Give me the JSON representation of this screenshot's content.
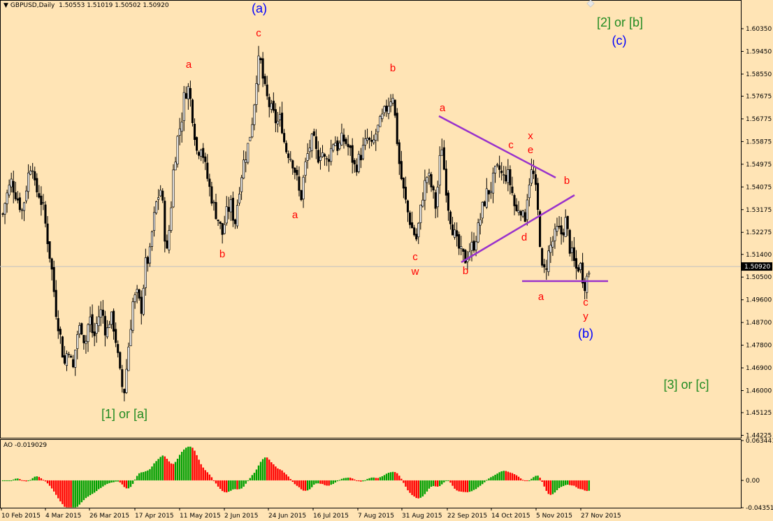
{
  "header": {
    "title": "GBPUSD,Daily",
    "ohlc": "1.50553 1.51019 1.50502 1.50920",
    "dropdown_icon": "triangle-down-icon"
  },
  "indicator": {
    "name": "AO",
    "value": "-0.019029"
  },
  "colors": {
    "background": "#ffe4b5",
    "candle_bull": "#ffffff",
    "candle_bear": "#000000",
    "wave_red": "#ff0000",
    "wave_blue": "#0000ff",
    "wave_green": "#228b22",
    "trendline": "#9932cc",
    "ao_up": "#00a000",
    "ao_down": "#ff0000"
  },
  "chart_data": [
    {
      "type": "candlestick",
      "symbol": "GBPUSD",
      "timeframe": "Daily",
      "current_price": "1.50920",
      "price_axis_ticks": [
        "1.60350",
        "1.59450",
        "1.58550",
        "1.57675",
        "1.56775",
        "1.55875",
        "1.54975",
        "1.54075",
        "1.53175",
        "1.52275",
        "1.51400",
        "1.50500",
        "1.49600",
        "1.48700",
        "1.47800",
        "1.46900",
        "1.46000",
        "1.45125",
        "1.44225"
      ],
      "ylim": [
        1.441,
        1.611
      ],
      "date_axis_ticks": [
        "10 Feb 2015",
        "4 Mar 2015",
        "26 Mar 2015",
        "17 Apr 2015",
        "11 May 2015",
        "2 Jun 2015",
        "24 Jun 2015",
        "16 Jul 2015",
        "7 Aug 2015",
        "31 Aug 2015",
        "22 Sep 2015",
        "14 Oct 2015",
        "5 Nov 2015",
        "27 Nov 2015"
      ],
      "close_path": [
        [
          0,
          1.524
        ],
        [
          8,
          1.536
        ],
        [
          16,
          1.543
        ],
        [
          24,
          1.537
        ],
        [
          32,
          1.531
        ],
        [
          40,
          1.545
        ],
        [
          46,
          1.552
        ],
        [
          50,
          1.54
        ],
        [
          56,
          1.538
        ],
        [
          62,
          1.532
        ],
        [
          68,
          1.52
        ],
        [
          74,
          1.508
        ],
        [
          80,
          1.492
        ],
        [
          86,
          1.482
        ],
        [
          92,
          1.47
        ],
        [
          98,
          1.478
        ],
        [
          104,
          1.467
        ],
        [
          110,
          1.482
        ],
        [
          116,
          1.486
        ],
        [
          122,
          1.478
        ],
        [
          128,
          1.49
        ],
        [
          134,
          1.48
        ],
        [
          140,
          1.489
        ],
        [
          146,
          1.492
        ],
        [
          152,
          1.482
        ],
        [
          158,
          1.49
        ],
        [
          164,
          1.484
        ],
        [
          170,
          1.47
        ],
        [
          174,
          1.462
        ],
        [
          178,
          1.46
        ],
        [
          184,
          1.478
        ],
        [
          190,
          1.495
        ],
        [
          196,
          1.498
        ],
        [
          202,
          1.492
        ],
        [
          208,
          1.51
        ],
        [
          214,
          1.513
        ],
        [
          218,
          1.524
        ],
        [
          224,
          1.535
        ],
        [
          230,
          1.54
        ],
        [
          234,
          1.53
        ],
        [
          238,
          1.512
        ],
        [
          244,
          1.53
        ],
        [
          248,
          1.547
        ],
        [
          254,
          1.56
        ],
        [
          260,
          1.568
        ],
        [
          264,
          1.578
        ],
        [
          270,
          1.58
        ],
        [
          276,
          1.568
        ],
        [
          282,
          1.554
        ],
        [
          288,
          1.558
        ],
        [
          294,
          1.548
        ],
        [
          300,
          1.54
        ],
        [
          306,
          1.533
        ],
        [
          312,
          1.528
        ],
        [
          318,
          1.522
        ],
        [
          324,
          1.53
        ],
        [
          330,
          1.534
        ],
        [
          336,
          1.526
        ],
        [
          342,
          1.54
        ],
        [
          348,
          1.55
        ],
        [
          354,
          1.556
        ],
        [
          360,
          1.565
        ],
        [
          364,
          1.575
        ],
        [
          368,
          1.588
        ],
        [
          372,
          1.592
        ],
        [
          378,
          1.58
        ],
        [
          384,
          1.574
        ],
        [
          390,
          1.57
        ],
        [
          396,
          1.566
        ],
        [
          402,
          1.568
        ],
        [
          408,
          1.556
        ],
        [
          414,
          1.554
        ],
        [
          420,
          1.55
        ],
        [
          426,
          1.542
        ],
        [
          430,
          1.535
        ],
        [
          436,
          1.548
        ],
        [
          442,
          1.556
        ],
        [
          448,
          1.56
        ],
        [
          454,
          1.552
        ],
        [
          460,
          1.556
        ],
        [
          466,
          1.55
        ],
        [
          472,
          1.554
        ],
        [
          478,
          1.56
        ],
        [
          484,
          1.556
        ],
        [
          490,
          1.56
        ],
        [
          496,
          1.558
        ],
        [
          502,
          1.554
        ],
        [
          508,
          1.548
        ],
        [
          514,
          1.552
        ],
        [
          520,
          1.556
        ],
        [
          526,
          1.56
        ],
        [
          532,
          1.556
        ],
        [
          538,
          1.562
        ],
        [
          544,
          1.566
        ],
        [
          550,
          1.57
        ],
        [
          556,
          1.574
        ],
        [
          562,
          1.578
        ],
        [
          568,
          1.56
        ],
        [
          572,
          1.548
        ],
        [
          578,
          1.538
        ],
        [
          584,
          1.53
        ],
        [
          590,
          1.524
        ],
        [
          596,
          1.52
        ],
        [
          600,
          1.528
        ],
        [
          606,
          1.54
        ],
        [
          612,
          1.546
        ],
        [
          618,
          1.54
        ],
        [
          624,
          1.532
        ],
        [
          628,
          1.548
        ],
        [
          632,
          1.558
        ],
        [
          636,
          1.546
        ],
        [
          642,
          1.532
        ],
        [
          648,
          1.524
        ],
        [
          654,
          1.518
        ],
        [
          660,
          1.514
        ],
        [
          666,
          1.512
        ],
        [
          672,
          1.516
        ],
        [
          678,
          1.518
        ],
        [
          684,
          1.524
        ],
        [
          690,
          1.532
        ],
        [
          696,
          1.538
        ],
        [
          702,
          1.54
        ],
        [
          708,
          1.546
        ],
        [
          714,
          1.548
        ],
        [
          720,
          1.544
        ],
        [
          726,
          1.546
        ],
        [
          732,
          1.54
        ],
        [
          738,
          1.53
        ],
        [
          744,
          1.534
        ],
        [
          750,
          1.526
        ],
        [
          756,
          1.542
        ],
        [
          762,
          1.548
        ],
        [
          768,
          1.536
        ],
        [
          772,
          1.522
        ],
        [
          776,
          1.506
        ],
        [
          780,
          1.508
        ],
        [
          786,
          1.516
        ],
        [
          792,
          1.52
        ],
        [
          798,
          1.524
        ],
        [
          804,
          1.522
        ],
        [
          810,
          1.528
        ],
        [
          814,
          1.518
        ],
        [
          818,
          1.514
        ],
        [
          824,
          1.508
        ],
        [
          830,
          1.51
        ],
        [
          836,
          1.502
        ],
        [
          840,
          1.505
        ],
        [
          844,
          1.509
        ]
      ],
      "annotations": [
        {
          "text": "(a)",
          "color": "blue"
        },
        {
          "text": "c",
          "color": "red"
        },
        {
          "text": "a",
          "color": "red"
        },
        {
          "text": "b",
          "color": "red"
        },
        {
          "text": "a",
          "color": "red"
        },
        {
          "text": "b",
          "color": "red"
        },
        {
          "text": "c",
          "color": "red"
        },
        {
          "text": "w",
          "color": "red"
        },
        {
          "text": "a",
          "color": "red"
        },
        {
          "text": "b",
          "color": "red"
        },
        {
          "text": "c",
          "color": "red"
        },
        {
          "text": "x",
          "color": "red"
        },
        {
          "text": "e",
          "color": "red"
        },
        {
          "text": "d",
          "color": "red"
        },
        {
          "text": "b",
          "color": "red"
        },
        {
          "text": "a",
          "color": "red"
        },
        {
          "text": "c",
          "color": "red"
        },
        {
          "text": "y",
          "color": "red"
        },
        {
          "text": "(b)",
          "color": "blue"
        },
        {
          "text": "[2] or [b]",
          "color": "green"
        },
        {
          "text": "(c)",
          "color": "blue"
        },
        {
          "text": "[1] or [a]",
          "color": "green"
        },
        {
          "text": "[3] or [c]",
          "color": "green"
        }
      ]
    },
    {
      "type": "bar",
      "name": "AO",
      "value_label": "-0.019029",
      "axis_ticks": [
        "0.063441",
        "0.00",
        "-0.043517"
      ],
      "ylim": [
        -0.0435,
        0.0634
      ]
    }
  ]
}
